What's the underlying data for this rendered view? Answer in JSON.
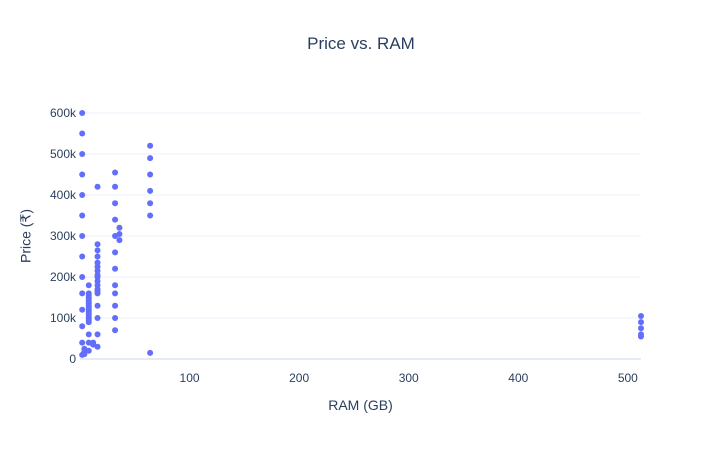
{
  "chart_data": {
    "type": "scatter",
    "title": "Price vs. RAM",
    "xlabel": "RAM (GB)",
    "ylabel": "Price (₹)",
    "xlim": [
      0,
      512
    ],
    "ylim": [
      0,
      600000
    ],
    "x_ticks": [
      100,
      200,
      300,
      400,
      500
    ],
    "x_tick_labels": [
      "100",
      "200",
      "300",
      "400",
      "500"
    ],
    "y_ticks": [
      0,
      100000,
      200000,
      300000,
      400000,
      500000,
      600000
    ],
    "y_tick_labels": [
      "0",
      "100k",
      "200k",
      "300k",
      "400k",
      "500k",
      "600k"
    ],
    "grid": true,
    "color": "#636efa",
    "series": [
      {
        "points": [
          [
            2,
            600000
          ],
          [
            2,
            550000
          ],
          [
            2,
            500000
          ],
          [
            2,
            450000
          ],
          [
            2,
            400000
          ],
          [
            2,
            350000
          ],
          [
            2,
            300000
          ],
          [
            2,
            250000
          ],
          [
            2,
            200000
          ],
          [
            2,
            160000
          ],
          [
            2,
            120000
          ],
          [
            2,
            80000
          ],
          [
            2,
            40000
          ],
          [
            2,
            10000
          ],
          [
            4,
            25000
          ],
          [
            4,
            18000
          ],
          [
            4,
            12000
          ],
          [
            8,
            180000
          ],
          [
            8,
            160000
          ],
          [
            8,
            155000
          ],
          [
            8,
            150000
          ],
          [
            8,
            145000
          ],
          [
            8,
            140000
          ],
          [
            8,
            135000
          ],
          [
            8,
            130000
          ],
          [
            8,
            125000
          ],
          [
            8,
            120000
          ],
          [
            8,
            115000
          ],
          [
            8,
            110000
          ],
          [
            8,
            105000
          ],
          [
            8,
            100000
          ],
          [
            8,
            95000
          ],
          [
            8,
            90000
          ],
          [
            8,
            60000
          ],
          [
            8,
            40000
          ],
          [
            8,
            20000
          ],
          [
            12,
            40000
          ],
          [
            12,
            35000
          ],
          [
            16,
            420000
          ],
          [
            16,
            280000
          ],
          [
            16,
            265000
          ],
          [
            16,
            250000
          ],
          [
            16,
            235000
          ],
          [
            16,
            225000
          ],
          [
            16,
            215000
          ],
          [
            16,
            205000
          ],
          [
            16,
            200000
          ],
          [
            16,
            190000
          ],
          [
            16,
            180000
          ],
          [
            16,
            170000
          ],
          [
            16,
            165000
          ],
          [
            16,
            160000
          ],
          [
            16,
            130000
          ],
          [
            16,
            100000
          ],
          [
            16,
            60000
          ],
          [
            16,
            30000
          ],
          [
            32,
            455000
          ],
          [
            32,
            420000
          ],
          [
            32,
            380000
          ],
          [
            32,
            340000
          ],
          [
            32,
            300000
          ],
          [
            32,
            260000
          ],
          [
            32,
            220000
          ],
          [
            32,
            180000
          ],
          [
            32,
            160000
          ],
          [
            32,
            130000
          ],
          [
            32,
            100000
          ],
          [
            32,
            70000
          ],
          [
            36,
            320000
          ],
          [
            36,
            305000
          ],
          [
            36,
            290000
          ],
          [
            64,
            520000
          ],
          [
            64,
            490000
          ],
          [
            64,
            450000
          ],
          [
            64,
            410000
          ],
          [
            64,
            380000
          ],
          [
            64,
            350000
          ],
          [
            64,
            15000
          ],
          [
            512,
            105000
          ],
          [
            512,
            90000
          ],
          [
            512,
            75000
          ],
          [
            512,
            60000
          ],
          [
            512,
            55000
          ]
        ]
      }
    ]
  }
}
